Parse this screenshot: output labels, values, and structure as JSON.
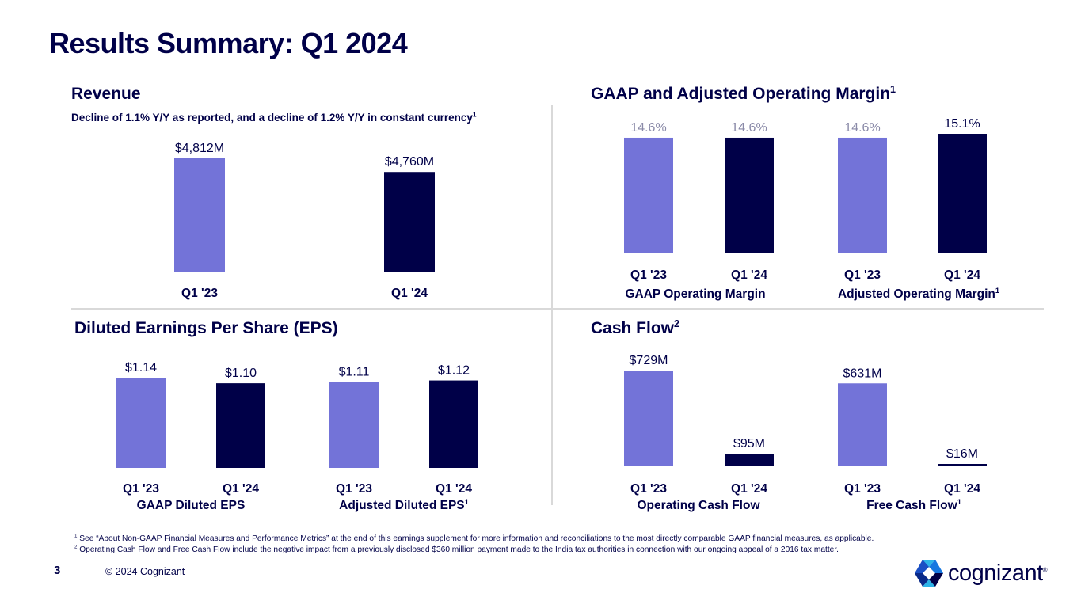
{
  "title": "Results Summary: Q1 2024",
  "colors": {
    "q1_23": "#7373d8",
    "q1_24": "#000048",
    "navy": "#000048"
  },
  "sections": {
    "revenue": {
      "title": "Revenue",
      "subtitle": "Decline of 1.1% Y/Y as reported, and a decline of 1.2% Y/Y in constant currency",
      "subtitle_sup": "1"
    },
    "margin": {
      "title": "GAAP and Adjusted Operating Margin",
      "title_sup": "1"
    },
    "eps": {
      "title": "Diluted Earnings Per Share (EPS)"
    },
    "cashflow": {
      "title": "Cash Flow",
      "title_sup": "2"
    }
  },
  "group_labels": {
    "gaap_margin": "GAAP Operating Margin",
    "adj_margin": "Adjusted Operating Margin",
    "adj_margin_sup": "1",
    "gaap_eps": "GAAP Diluted EPS",
    "adj_eps": "Adjusted Diluted EPS",
    "adj_eps_sup": "1",
    "ocf": "Operating Cash Flow",
    "fcf": "Free Cash Flow",
    "fcf_sup": "1"
  },
  "chart_data": [
    {
      "type": "bar",
      "id": "revenue",
      "title": "Revenue",
      "unit": "$M",
      "categories": [
        "Q1 '23",
        "Q1 '24"
      ],
      "values": [
        4812,
        4760
      ],
      "labels": [
        "$4,812M",
        "$4,760M"
      ]
    },
    {
      "type": "bar",
      "id": "gaap_margin",
      "title": "GAAP Operating Margin",
      "unit": "%",
      "categories": [
        "Q1 '23",
        "Q1 '24"
      ],
      "values": [
        14.6,
        14.6
      ],
      "labels": [
        "14.6%",
        "14.6%"
      ]
    },
    {
      "type": "bar",
      "id": "adj_margin",
      "title": "Adjusted Operating Margin",
      "unit": "%",
      "categories": [
        "Q1 '23",
        "Q1 '24"
      ],
      "values": [
        14.6,
        15.1
      ],
      "labels": [
        "14.6%",
        "15.1%"
      ]
    },
    {
      "type": "bar",
      "id": "gaap_eps",
      "title": "GAAP Diluted EPS",
      "unit": "$",
      "categories": [
        "Q1 '23",
        "Q1 '24"
      ],
      "values": [
        1.14,
        1.1
      ],
      "labels": [
        "$1.14",
        "$1.10"
      ]
    },
    {
      "type": "bar",
      "id": "adj_eps",
      "title": "Adjusted Diluted EPS",
      "unit": "$",
      "categories": [
        "Q1 '23",
        "Q1 '24"
      ],
      "values": [
        1.11,
        1.12
      ],
      "labels": [
        "$1.11",
        "$1.12"
      ]
    },
    {
      "type": "bar",
      "id": "ocf",
      "title": "Operating Cash Flow",
      "unit": "$M",
      "categories": [
        "Q1 '23",
        "Q1 '24"
      ],
      "values": [
        729,
        95
      ],
      "labels": [
        "$729M",
        "$95M"
      ]
    },
    {
      "type": "bar",
      "id": "fcf",
      "title": "Free Cash Flow",
      "unit": "$M",
      "categories": [
        "Q1 '23",
        "Q1 '24"
      ],
      "values": [
        631,
        16
      ],
      "labels": [
        "$631M",
        "$16M"
      ]
    }
  ],
  "footnotes": [
    {
      "num": "1",
      "text": "See “About Non-GAAP Financial Measures and Performance Metrics” at the end of this earnings supplement for more information and reconciliations to the most directly comparable GAAP financial measures, as applicable."
    },
    {
      "num": "2",
      "text": "Operating Cash Flow and Free Cash Flow include the negative impact from a previously disclosed $360 million payment made to the India tax authorities in connection with our ongoing appeal of a 2016 tax matter."
    }
  ],
  "footer": {
    "page": "3",
    "copyright": "© 2024 Cognizant",
    "logo_text": "cognizant",
    "logo_tm": "®"
  }
}
